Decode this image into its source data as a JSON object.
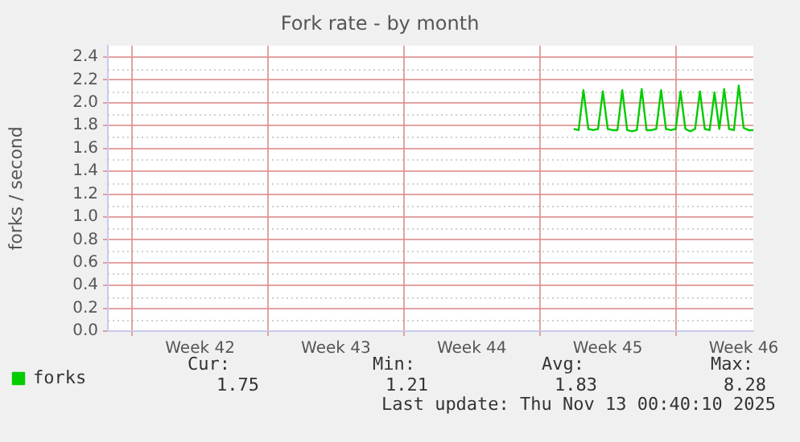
{
  "chart_data": {
    "type": "line",
    "title": "Fork rate - by month",
    "ylabel": "forks / second",
    "categories": [
      null,
      null,
      null,
      null,
      null,
      null,
      null,
      null,
      null,
      null,
      null,
      null,
      null,
      null,
      null,
      null,
      null,
      null,
      null,
      "Week 42",
      null,
      null,
      null,
      null,
      null,
      null,
      null,
      null,
      null,
      null,
      null,
      null,
      null,
      null,
      null,
      null,
      null,
      null,
      null,
      null,
      null,
      null,
      null,
      null,
      null,
      null,
      null,
      "Week 43",
      null,
      null,
      null,
      null,
      null,
      null,
      null,
      null,
      null,
      null,
      null,
      null,
      null,
      null,
      null,
      null,
      null,
      null,
      null,
      null,
      null,
      null,
      null,
      null,
      null,
      null,
      null,
      "Week 44",
      null,
      null,
      null,
      null,
      null,
      null,
      null,
      null,
      null,
      null,
      null,
      null,
      null,
      null,
      null,
      null,
      null,
      null,
      null,
      null,
      null,
      null,
      null,
      null,
      null,
      null,
      null,
      "Week 45",
      null,
      null,
      null,
      null,
      null,
      null,
      null,
      null,
      null,
      null,
      null,
      null,
      null,
      null,
      null,
      null,
      null,
      null,
      null,
      null,
      null,
      null,
      null,
      null,
      null,
      null,
      null,
      "Week 46",
      null,
      null
    ],
    "series": [
      {
        "name": "forks",
        "color": "#00cc00",
        "values": [
          null,
          null,
          null,
          null,
          null,
          null,
          null,
          null,
          null,
          null,
          null,
          null,
          null,
          null,
          null,
          null,
          null,
          null,
          null,
          null,
          null,
          null,
          null,
          null,
          null,
          null,
          null,
          null,
          null,
          null,
          null,
          null,
          null,
          null,
          null,
          null,
          null,
          null,
          null,
          null,
          null,
          null,
          null,
          null,
          null,
          null,
          null,
          null,
          null,
          null,
          null,
          null,
          null,
          null,
          null,
          null,
          null,
          null,
          null,
          null,
          null,
          null,
          null,
          null,
          null,
          null,
          null,
          null,
          null,
          null,
          null,
          null,
          null,
          null,
          null,
          null,
          null,
          null,
          null,
          null,
          null,
          null,
          null,
          null,
          null,
          null,
          null,
          null,
          null,
          null,
          null,
          null,
          null,
          null,
          null,
          null,
          1.77,
          1.76,
          2.11,
          1.77,
          1.76,
          1.77,
          2.1,
          1.77,
          1.76,
          1.76,
          2.11,
          1.76,
          1.75,
          1.76,
          2.12,
          1.76,
          1.76,
          1.77,
          2.11,
          1.77,
          1.76,
          1.77,
          2.1,
          1.77,
          1.75,
          1.77,
          2.1,
          1.77,
          1.76,
          2.09,
          1.77,
          2.12,
          1.77,
          1.76,
          2.15,
          1.78,
          1.76,
          1.76
        ]
      }
    ],
    "ylim": [
      0,
      2.5
    ],
    "yticks": [
      {
        "value": 0,
        "label": "0.0"
      },
      {
        "value": 0.2,
        "label": "0.2"
      },
      {
        "value": 0.4,
        "label": "0.4"
      },
      {
        "value": 0.6,
        "label": "0.6"
      },
      {
        "value": 0.8,
        "label": "0.8"
      },
      {
        "value": 1,
        "label": "1.0"
      },
      {
        "value": 1.2,
        "label": "1.2"
      },
      {
        "value": 1.4,
        "label": "1.4"
      },
      {
        "value": 1.6,
        "label": "1.6"
      },
      {
        "value": 1.8,
        "label": "1.8"
      },
      {
        "value": 2,
        "label": "2.0"
      },
      {
        "value": 2.2,
        "label": "2.2"
      },
      {
        "value": 2.4,
        "label": "2.4"
      }
    ],
    "grid": true,
    "legend": "bottom left",
    "marker": "none",
    "line_style": "solid",
    "annotations": [
      "Cur:",
      "Min:",
      "Avg:",
      "Max:",
      "1.75",
      "1.21",
      "1.83",
      "8.28",
      "Last update: Thu Nov 13 00:40:10 2025"
    ]
  }
}
